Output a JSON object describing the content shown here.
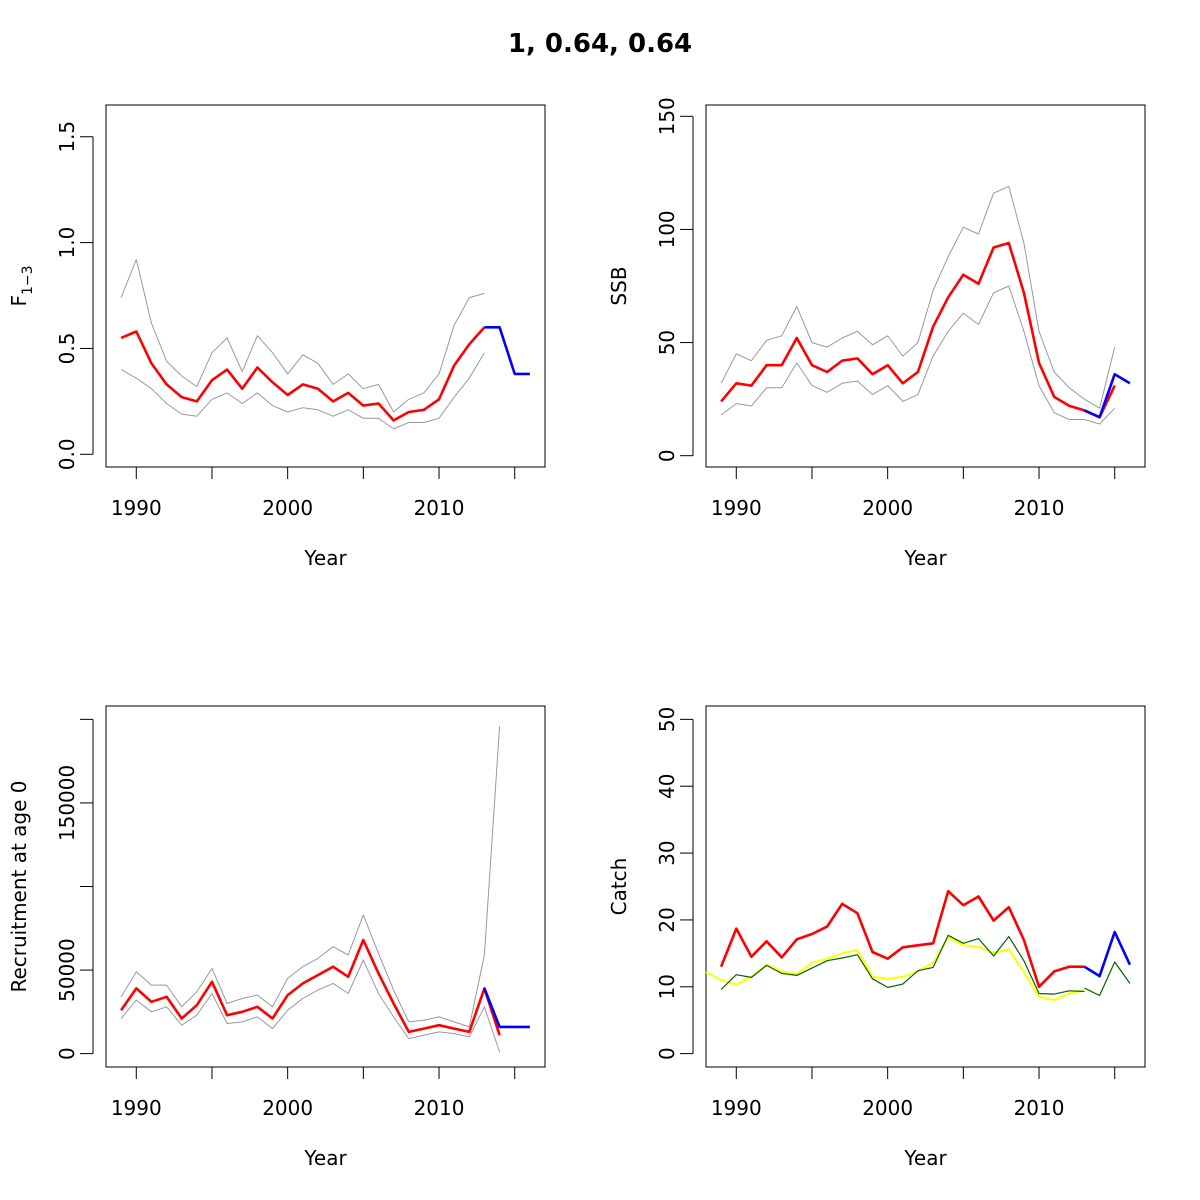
{
  "page_title": "1, 0.64, 0.64",
  "colors": {
    "estimate": "#ff0000",
    "ci": "#999999",
    "forecast": "#0000ff",
    "obs_yellow": "#ffff00",
    "obs_green": "#006400"
  },
  "chart_data": [
    {
      "id": "f",
      "type": "line",
      "xlabel": "Year",
      "ylabel": "F",
      "ylabel_sub": "1−3",
      "xlim": [
        1988,
        2017
      ],
      "ylim": [
        -0.06,
        1.65
      ],
      "xticks": [
        1990,
        1995,
        2000,
        2005,
        2010,
        2015
      ],
      "xtick_labels": [
        "1990",
        "",
        "2000",
        "",
        "2010",
        ""
      ],
      "yticks": [
        0.0,
        0.5,
        1.0,
        1.5
      ],
      "ytick_labels": [
        "0.0",
        "0.5",
        "1.0",
        "1.5"
      ],
      "series": [
        {
          "role": "ci",
          "x": [
            1989,
            1990,
            1991,
            1992,
            1993,
            1994,
            1995,
            1996,
            1997,
            1998,
            1999,
            2000,
            2001,
            2002,
            2003,
            2004,
            2005,
            2006,
            2007,
            2008,
            2009,
            2010,
            2011,
            2012,
            2013
          ],
          "values": [
            0.74,
            0.92,
            0.62,
            0.44,
            0.37,
            0.32,
            0.48,
            0.55,
            0.39,
            0.56,
            0.48,
            0.38,
            0.47,
            0.43,
            0.33,
            0.38,
            0.31,
            0.33,
            0.2,
            0.26,
            0.29,
            0.38,
            0.61,
            0.74,
            0.76
          ]
        },
        {
          "role": "ci",
          "x": [
            1989,
            1990,
            1991,
            1992,
            1993,
            1994,
            1995,
            1996,
            1997,
            1998,
            1999,
            2000,
            2001,
            2002,
            2003,
            2004,
            2005,
            2006,
            2007,
            2008,
            2009,
            2010,
            2011,
            2012,
            2013
          ],
          "values": [
            0.4,
            0.36,
            0.31,
            0.24,
            0.19,
            0.18,
            0.26,
            0.29,
            0.24,
            0.29,
            0.23,
            0.2,
            0.22,
            0.21,
            0.18,
            0.21,
            0.17,
            0.17,
            0.12,
            0.15,
            0.15,
            0.17,
            0.27,
            0.36,
            0.48
          ]
        },
        {
          "role": "estimate",
          "x": [
            1989,
            1990,
            1991,
            1992,
            1993,
            1994,
            1995,
            1996,
            1997,
            1998,
            1999,
            2000,
            2001,
            2002,
            2003,
            2004,
            2005,
            2006,
            2007,
            2008,
            2009,
            2010,
            2011,
            2012,
            2013
          ],
          "values": [
            0.55,
            0.58,
            0.43,
            0.33,
            0.27,
            0.25,
            0.35,
            0.4,
            0.31,
            0.41,
            0.34,
            0.28,
            0.33,
            0.31,
            0.25,
            0.29,
            0.23,
            0.24,
            0.16,
            0.2,
            0.21,
            0.26,
            0.42,
            0.52,
            0.6
          ]
        },
        {
          "role": "forecast",
          "x": [
            2013,
            2014,
            2015,
            2016
          ],
          "values": [
            0.6,
            0.6,
            0.38,
            0.38
          ]
        }
      ]
    },
    {
      "id": "ssb",
      "type": "line",
      "xlabel": "Year",
      "ylabel": "SSB",
      "xlim": [
        1988,
        2017
      ],
      "ylim": [
        -5,
        155
      ],
      "xticks": [
        1990,
        1995,
        2000,
        2005,
        2010,
        2015
      ],
      "xtick_labels": [
        "1990",
        "",
        "2000",
        "",
        "2010",
        ""
      ],
      "yticks": [
        0,
        50,
        100,
        150
      ],
      "ytick_labels": [
        "0",
        "50",
        "100",
        "150"
      ],
      "series": [
        {
          "role": "ci",
          "x": [
            1989,
            1990,
            1991,
            1992,
            1993,
            1994,
            1995,
            1996,
            1997,
            1998,
            1999,
            2000,
            2001,
            2002,
            2003,
            2004,
            2005,
            2006,
            2007,
            2008,
            2009,
            2010,
            2011,
            2012,
            2013,
            2014,
            2015
          ],
          "values": [
            32,
            45,
            42,
            51,
            53,
            66,
            50,
            48,
            52,
            55,
            49,
            53,
            44,
            50,
            73,
            88,
            101,
            98,
            116,
            119,
            94,
            55,
            37,
            30,
            25,
            21,
            48
          ]
        },
        {
          "role": "ci",
          "x": [
            1989,
            1990,
            1991,
            1992,
            1993,
            1994,
            1995,
            1996,
            1997,
            1998,
            1999,
            2000,
            2001,
            2002,
            2003,
            2004,
            2005,
            2006,
            2007,
            2008,
            2009,
            2010,
            2011,
            2012,
            2013,
            2014,
            2015
          ],
          "values": [
            18,
            23,
            22,
            30,
            30,
            41,
            31,
            28,
            32,
            33,
            27,
            31,
            24,
            27,
            44,
            55,
            63,
            58,
            72,
            75,
            55,
            31,
            19,
            16,
            16,
            14,
            21
          ]
        },
        {
          "role": "estimate",
          "x": [
            1989,
            1990,
            1991,
            1992,
            1993,
            1994,
            1995,
            1996,
            1997,
            1998,
            1999,
            2000,
            2001,
            2002,
            2003,
            2004,
            2005,
            2006,
            2007,
            2008,
            2009,
            2010,
            2011,
            2012,
            2013,
            2014,
            2015
          ],
          "values": [
            24,
            32,
            31,
            40,
            40,
            52,
            40,
            37,
            42,
            43,
            36,
            40,
            32,
            37,
            57,
            70,
            80,
            76,
            92,
            94,
            72,
            41,
            26,
            22,
            20,
            17,
            31
          ]
        },
        {
          "role": "forecast",
          "x": [
            2013,
            2014,
            2015,
            2016
          ],
          "values": [
            20,
            17,
            36,
            32
          ]
        }
      ]
    },
    {
      "id": "recruitment",
      "type": "line",
      "xlabel": "Year",
      "ylabel": "Recruitment at age 0",
      "xlim": [
        1988,
        2017
      ],
      "ylim": [
        -8000,
        208000
      ],
      "xticks": [
        1990,
        1995,
        2000,
        2005,
        2010,
        2015
      ],
      "xtick_labels": [
        "1990",
        "",
        "2000",
        "",
        "2010",
        ""
      ],
      "yticks": [
        0,
        50000,
        100000,
        150000,
        200000
      ],
      "ytick_labels": [
        "0",
        "50000",
        "",
        "150000",
        ""
      ],
      "series": [
        {
          "role": "ci",
          "x": [
            1989,
            1990,
            1991,
            1992,
            1993,
            1994,
            1995,
            1996,
            1997,
            1998,
            1999,
            2000,
            2001,
            2002,
            2003,
            2004,
            2005,
            2006,
            2007,
            2008,
            2009,
            2010,
            2011,
            2012,
            2013,
            2014
          ],
          "values": [
            34000,
            49000,
            41000,
            41000,
            28000,
            37000,
            51000,
            30000,
            33000,
            35000,
            28000,
            45000,
            52000,
            57000,
            64000,
            59000,
            83000,
            60000,
            38000,
            19000,
            20000,
            22000,
            19000,
            16000,
            59000,
            196000
          ]
        },
        {
          "role": "ci",
          "x": [
            1989,
            1990,
            1991,
            1992,
            1993,
            1994,
            1995,
            1996,
            1997,
            1998,
            1999,
            2000,
            2001,
            2002,
            2003,
            2004,
            2005,
            2006,
            2007,
            2008,
            2009,
            2010,
            2011,
            2012,
            2013,
            2014
          ],
          "values": [
            21000,
            32000,
            25000,
            28000,
            17000,
            23000,
            36000,
            18000,
            19000,
            22000,
            15000,
            26000,
            33000,
            38000,
            42000,
            36000,
            56000,
            36000,
            22000,
            9000,
            11000,
            13000,
            12000,
            10000,
            28000,
            1000
          ]
        },
        {
          "role": "estimate",
          "x": [
            1989,
            1990,
            1991,
            1992,
            1993,
            1994,
            1995,
            1996,
            1997,
            1998,
            1999,
            2000,
            2001,
            2002,
            2003,
            2004,
            2005,
            2006,
            2007,
            2008,
            2009,
            2010,
            2011,
            2012,
            2013,
            2014
          ],
          "values": [
            26000,
            39000,
            31000,
            34000,
            21000,
            29000,
            43000,
            23000,
            25000,
            28000,
            21000,
            35000,
            42000,
            47000,
            52000,
            46000,
            68000,
            48000,
            30000,
            13000,
            15000,
            17000,
            15000,
            13000,
            39000,
            11000
          ]
        },
        {
          "role": "forecast",
          "x": [
            2013,
            2014,
            2015,
            2016
          ],
          "values": [
            39000,
            16000,
            16000,
            16000
          ]
        }
      ]
    },
    {
      "id": "catch",
      "type": "line",
      "xlabel": "Year",
      "ylabel": "Catch",
      "xlim": [
        1988,
        2017
      ],
      "ylim": [
        -2,
        52
      ],
      "xticks": [
        1990,
        1995,
        2000,
        2005,
        2010,
        2015
      ],
      "xtick_labels": [
        "1990",
        "",
        "2000",
        "",
        "2010",
        ""
      ],
      "yticks": [
        0,
        10,
        20,
        30,
        40,
        50
      ],
      "ytick_labels": [
        "0",
        "10",
        "20",
        "30",
        "40",
        "50"
      ],
      "series": [
        {
          "role": "obs_yellow",
          "x": [
            1988,
            1989,
            1990,
            1991,
            1992,
            1993,
            1994,
            1995,
            1996,
            1997,
            1998,
            1999,
            2000,
            2001,
            2002,
            2003,
            2004,
            2005,
            2006,
            2007,
            2008,
            2009,
            2010,
            2011,
            2012,
            2013
          ],
          "values": [
            12.2,
            11.0,
            10.3,
            11.5,
            13.3,
            12.3,
            11.9,
            13.6,
            14.2,
            15.0,
            15.5,
            11.5,
            11.2,
            11.5,
            12.3,
            13.6,
            17.4,
            16.2,
            16.0,
            15.0,
            15.6,
            12.2,
            8.5,
            8.0,
            9.0,
            9.5
          ]
        },
        {
          "role": "obs_green",
          "x": [
            1989,
            1990,
            1991,
            1992,
            1993,
            1994,
            1995,
            1996,
            1997,
            1998,
            1999,
            2000,
            2001,
            2002,
            2003,
            2004,
            2005,
            2006,
            2007,
            2008,
            2009,
            2010,
            2011,
            2012,
            2013
          ],
          "values": [
            9.6,
            11.8,
            11.4,
            13.2,
            12.0,
            11.7,
            12.8,
            13.9,
            14.3,
            14.8,
            11.2,
            9.9,
            10.4,
            12.4,
            12.9,
            17.7,
            16.5,
            17.2,
            14.6,
            17.5,
            13.9,
            9.0,
            8.9,
            9.4,
            9.3
          ]
        },
        {
          "role": "estimate",
          "x": [
            1989,
            1990,
            1991,
            1992,
            1993,
            1994,
            1995,
            1996,
            1997,
            1998,
            1999,
            2000,
            2001,
            2002,
            2003,
            2004,
            2005,
            2006,
            2007,
            2008,
            2009,
            2010,
            2011,
            2012,
            2013
          ],
          "values": [
            13.0,
            18.7,
            14.5,
            16.8,
            14.4,
            17.1,
            17.9,
            19.0,
            22.4,
            21.0,
            15.2,
            14.2,
            15.9,
            16.2,
            16.5,
            24.3,
            22.2,
            23.5,
            19.9,
            21.9,
            17.0,
            10.0,
            12.3,
            13.0,
            13.0
          ]
        },
        {
          "role": "forecast",
          "x": [
            2013,
            2014,
            2015,
            2016
          ],
          "values": [
            13.0,
            11.6,
            18.2,
            13.3
          ]
        },
        {
          "role": "obs_green",
          "x": [
            2013,
            2014,
            2015,
            2016
          ],
          "values": [
            9.8,
            8.7,
            13.7,
            10.5
          ]
        }
      ]
    }
  ]
}
